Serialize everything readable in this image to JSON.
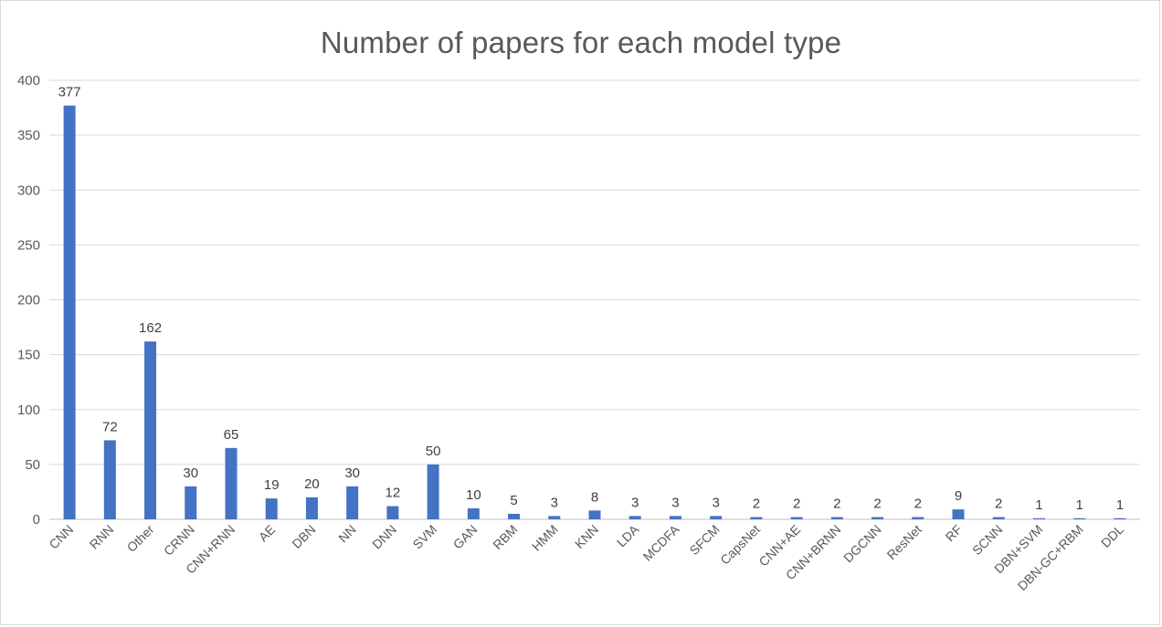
{
  "chart_data": {
    "type": "bar",
    "title": "Number of papers for each model type",
    "xlabel": "",
    "ylabel": "",
    "ylim": [
      0,
      400
    ],
    "yticks": [
      0,
      50,
      100,
      150,
      200,
      250,
      300,
      350,
      400
    ],
    "grid": true,
    "legend": "none",
    "bar_color": "#4472c4",
    "categories": [
      "CNN",
      "RNN",
      "Other",
      "CRNN",
      "CNN+RNN",
      "AE",
      "DBN",
      "NN",
      "DNN",
      "SVM",
      "GAN",
      "RBM",
      "HMM",
      "KNN",
      "LDA",
      "MCDFA",
      "SFCM",
      "CapsNet",
      "CNN+AE",
      "CNN+BRNN",
      "DGCNN",
      "ResNet",
      "RF",
      "SCNN",
      "DBN+SVM",
      "DBN-GC+RBM",
      "DDL"
    ],
    "values": [
      377,
      72,
      162,
      30,
      65,
      19,
      20,
      30,
      12,
      50,
      10,
      5,
      3,
      8,
      3,
      3,
      3,
      2,
      2,
      2,
      2,
      2,
      9,
      2,
      1,
      1,
      1
    ]
  }
}
